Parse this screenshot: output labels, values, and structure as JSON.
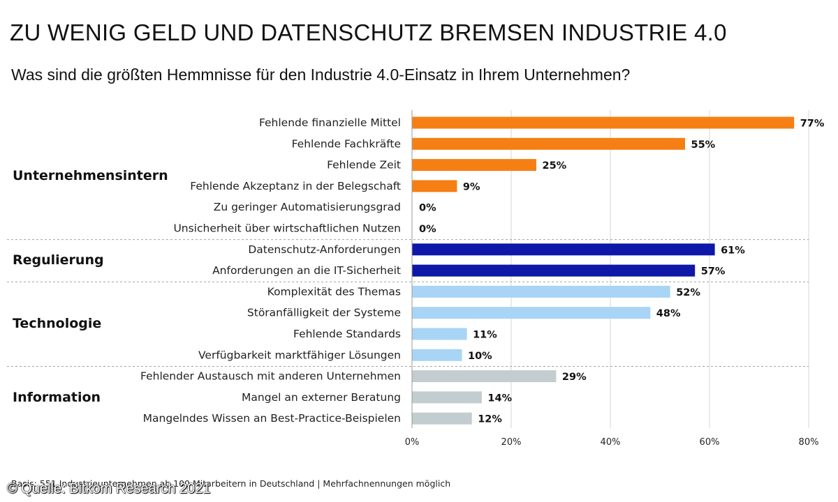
{
  "header": {
    "title": "ZU WENIG GELD UND DATENSCHUTZ BREMSEN INDUSTRIE 4.0",
    "subtitle": "Was sind die größten Hemmnisse für den Industrie 4.0-Einsatz in Ihrem Unternehmen?"
  },
  "chart_data": {
    "type": "bar",
    "orientation": "horizontal",
    "title": "ZU WENIG GELD UND DATENSCHUTZ BREMSEN INDUSTRIE 4.0",
    "subtitle": "Was sind die größten Hemmnisse für den Industrie 4.0-Einsatz in Ihrem Unternehmen?",
    "xlim": [
      0,
      80
    ],
    "xticks": [
      0,
      20,
      40,
      60,
      80
    ],
    "xtick_labels": [
      "0%",
      "20%",
      "40%",
      "60%",
      "80%"
    ],
    "grid": true,
    "groups": [
      {
        "name": "Unternehmensintern",
        "color": "#f67f14",
        "items": [
          {
            "label": "Fehlende finanzielle Mittel",
            "value": 77,
            "value_label": "77%"
          },
          {
            "label": "Fehlende Fachkräfte",
            "value": 55,
            "value_label": "55%"
          },
          {
            "label": "Fehlende Zeit",
            "value": 25,
            "value_label": "25%"
          },
          {
            "label": "Fehlende Akzeptanz in der Belegschaft",
            "value": 9,
            "value_label": "9%"
          },
          {
            "label": "Zu geringer Automatisierungsgrad",
            "value": 0,
            "value_label": "0%"
          },
          {
            "label": "Unsicherheit über wirtschaftlichen Nutzen",
            "value": 0,
            "value_label": "0%"
          }
        ]
      },
      {
        "name": "Regulierung",
        "color": "#0f17a8",
        "items": [
          {
            "label": "Datenschutz-Anforderungen",
            "value": 61,
            "value_label": "61%"
          },
          {
            "label": "Anforderungen an die IT-Sicherheit",
            "value": 57,
            "value_label": "57%"
          }
        ]
      },
      {
        "name": "Technologie",
        "color": "#a8d4f6",
        "items": [
          {
            "label": "Komplexität des Themas",
            "value": 52,
            "value_label": "52%"
          },
          {
            "label": "Störanfälligkeit der Systeme",
            "value": 48,
            "value_label": "48%"
          },
          {
            "label": "Fehlende Standards",
            "value": 11,
            "value_label": "11%"
          },
          {
            "label": "Verfügbarkeit marktfähiger Lösungen",
            "value": 10,
            "value_label": "10%"
          }
        ]
      },
      {
        "name": "Information",
        "color": "#c3cccf",
        "items": [
          {
            "label": "Fehlender Austausch mit anderen Unternehmen",
            "value": 29,
            "value_label": "29%"
          },
          {
            "label": "Mangel an externer Beratung",
            "value": 14,
            "value_label": "14%"
          },
          {
            "label": "Mangelndes Wissen an Best-Practice-Beispielen",
            "value": 12,
            "value_label": "12%"
          }
        ]
      }
    ]
  },
  "footer": {
    "note": "Basis: 551 Industrieunternehmen ab 100 Mitarbeitern in Deutschland | Mehrfachnennungen möglich",
    "source": "© Quelle: Bitkom Research 2021"
  }
}
